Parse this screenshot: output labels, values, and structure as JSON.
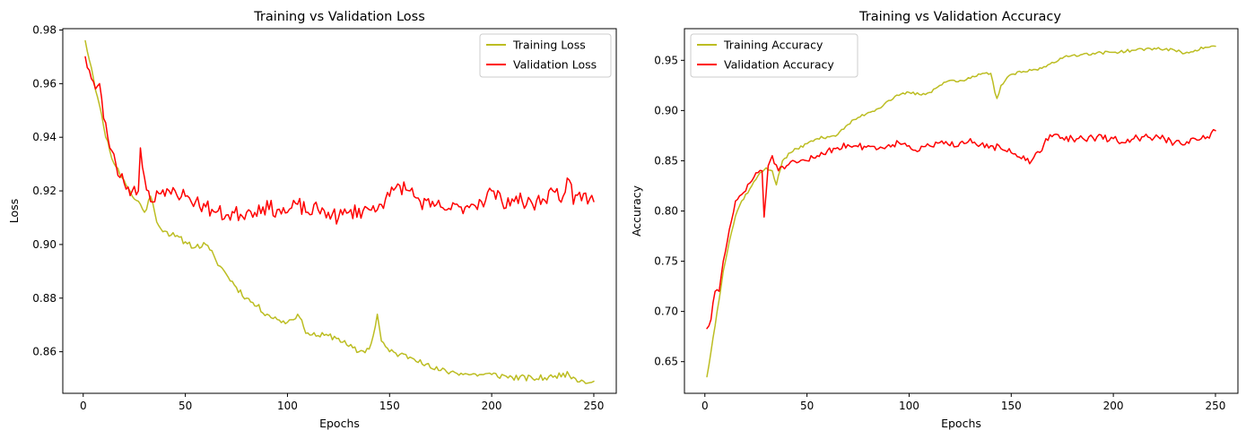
{
  "colors": {
    "training": "#bcbd22",
    "validation": "#ff0000"
  },
  "chart_data": [
    {
      "type": "line",
      "title": "Training vs Validation Loss",
      "xlabel": "Epochs",
      "ylabel": "Loss",
      "xlim": [
        -10,
        261
      ],
      "ylim": [
        0.8445,
        0.9805
      ],
      "xticks": [
        0,
        50,
        100,
        150,
        200,
        250
      ],
      "yticks": [
        0.86,
        0.88,
        0.9,
        0.92,
        0.94,
        0.96,
        0.98
      ],
      "xtick_labels": [
        "0",
        "50",
        "100",
        "150",
        "200",
        "250"
      ],
      "ytick_labels": [
        "0.86",
        "0.88",
        "0.90",
        "0.92",
        "0.94",
        "0.96",
        "0.98"
      ],
      "legend_position": "top-right",
      "grid": false,
      "series": [
        {
          "name": "Training Loss",
          "color": "#bcbd22",
          "keypoints": [
            [
              1,
              0.976
            ],
            [
              4,
              0.966
            ],
            [
              7,
              0.955
            ],
            [
              10,
              0.944
            ],
            [
              13,
              0.935
            ],
            [
              16,
              0.929
            ],
            [
              20,
              0.924
            ],
            [
              24,
              0.918
            ],
            [
              28,
              0.915
            ],
            [
              30,
              0.912
            ],
            [
              33,
              0.918
            ],
            [
              35,
              0.912
            ],
            [
              37,
              0.907
            ],
            [
              40,
              0.905
            ],
            [
              45,
              0.903
            ],
            [
              50,
              0.901
            ],
            [
              55,
              0.899
            ],
            [
              60,
              0.9
            ],
            [
              62,
              0.898
            ],
            [
              65,
              0.894
            ],
            [
              70,
              0.889
            ],
            [
              75,
              0.884
            ],
            [
              80,
              0.88
            ],
            [
              85,
              0.877
            ],
            [
              90,
              0.874
            ],
            [
              95,
              0.872
            ],
            [
              100,
              0.871
            ],
            [
              105,
              0.874
            ],
            [
              108,
              0.869
            ],
            [
              110,
              0.867
            ],
            [
              115,
              0.866
            ],
            [
              120,
              0.866
            ],
            [
              125,
              0.865
            ],
            [
              130,
              0.862
            ],
            [
              135,
              0.86
            ],
            [
              140,
              0.861
            ],
            [
              142,
              0.866
            ],
            [
              144,
              0.874
            ],
            [
              146,
              0.864
            ],
            [
              150,
              0.86
            ],
            [
              155,
              0.859
            ],
            [
              160,
              0.858
            ],
            [
              165,
              0.857
            ],
            [
              170,
              0.854
            ],
            [
              175,
              0.853
            ],
            [
              180,
              0.8525
            ],
            [
              185,
              0.852
            ],
            [
              190,
              0.8515
            ],
            [
              195,
              0.8515
            ],
            [
              200,
              0.8515
            ],
            [
              210,
              0.8505
            ],
            [
              220,
              0.85
            ],
            [
              230,
              0.8505
            ],
            [
              235,
              0.852
            ],
            [
              240,
              0.8505
            ],
            [
              245,
              0.849
            ],
            [
              250,
              0.849
            ]
          ],
          "noise": 0.0012,
          "seed": 11
        },
        {
          "name": "Validation Loss",
          "color": "#ff0000",
          "keypoints": [
            [
              1,
              0.97
            ],
            [
              3,
              0.965
            ],
            [
              6,
              0.958
            ],
            [
              8,
              0.96
            ],
            [
              10,
              0.947
            ],
            [
              12,
              0.94
            ],
            [
              14,
              0.935
            ],
            [
              16,
              0.93
            ],
            [
              18,
              0.925
            ],
            [
              20,
              0.923
            ],
            [
              24,
              0.92
            ],
            [
              27,
              0.92
            ],
            [
              28,
              0.936
            ],
            [
              30,
              0.925
            ],
            [
              33,
              0.916
            ],
            [
              36,
              0.92
            ],
            [
              40,
              0.918
            ],
            [
              45,
              0.92
            ],
            [
              50,
              0.918
            ],
            [
              55,
              0.916
            ],
            [
              60,
              0.914
            ],
            [
              65,
              0.912
            ],
            [
              70,
              0.911
            ],
            [
              80,
              0.912
            ],
            [
              88,
              0.914
            ],
            [
              95,
              0.913
            ],
            [
              100,
              0.912
            ],
            [
              105,
              0.915
            ],
            [
              110,
              0.912
            ],
            [
              115,
              0.913
            ],
            [
              120,
              0.912
            ],
            [
              125,
              0.91
            ],
            [
              130,
              0.912
            ],
            [
              140,
              0.913
            ],
            [
              145,
              0.915
            ],
            [
              150,
              0.918
            ],
            [
              155,
              0.922
            ],
            [
              160,
              0.92
            ],
            [
              165,
              0.916
            ],
            [
              170,
              0.914
            ],
            [
              175,
              0.914
            ],
            [
              180,
              0.913
            ],
            [
              185,
              0.914
            ],
            [
              190,
              0.915
            ],
            [
              195,
              0.916
            ],
            [
              200,
              0.92
            ],
            [
              205,
              0.916
            ],
            [
              210,
              0.917
            ],
            [
              215,
              0.916
            ],
            [
              220,
              0.915
            ],
            [
              225,
              0.917
            ],
            [
              230,
              0.92
            ],
            [
              235,
              0.918
            ],
            [
              238,
              0.924
            ],
            [
              240,
              0.915
            ],
            [
              245,
              0.919
            ],
            [
              248,
              0.917
            ],
            [
              250,
              0.916
            ]
          ],
          "noise": 0.003,
          "seed": 23
        }
      ]
    },
    {
      "type": "line",
      "title": "Training vs Validation Accuracy",
      "xlabel": "Epochs",
      "ylabel": "Accuracy",
      "xlim": [
        -10,
        261
      ],
      "ylim": [
        0.6185,
        0.9815
      ],
      "xticks": [
        0,
        50,
        100,
        150,
        200,
        250
      ],
      "yticks": [
        0.65,
        0.7,
        0.75,
        0.8,
        0.85,
        0.9,
        0.95
      ],
      "xtick_labels": [
        "0",
        "50",
        "100",
        "150",
        "200",
        "250"
      ],
      "ytick_labels": [
        "0.65",
        "0.70",
        "0.75",
        "0.80",
        "0.85",
        "0.90",
        "0.95"
      ],
      "legend_position": "top-left",
      "grid": false,
      "series": [
        {
          "name": "Training Accuracy",
          "color": "#bcbd22",
          "keypoints": [
            [
              1,
              0.635
            ],
            [
              3,
              0.66
            ],
            [
              6,
              0.7
            ],
            [
              9,
              0.74
            ],
            [
              12,
              0.77
            ],
            [
              15,
              0.795
            ],
            [
              18,
              0.81
            ],
            [
              22,
              0.822
            ],
            [
              26,
              0.835
            ],
            [
              30,
              0.843
            ],
            [
              33,
              0.84
            ],
            [
              35,
              0.826
            ],
            [
              38,
              0.85
            ],
            [
              42,
              0.858
            ],
            [
              45,
              0.862
            ],
            [
              50,
              0.867
            ],
            [
              55,
              0.872
            ],
            [
              60,
              0.874
            ],
            [
              65,
              0.876
            ],
            [
              70,
              0.886
            ],
            [
              75,
              0.893
            ],
            [
              80,
              0.898
            ],
            [
              85,
              0.902
            ],
            [
              90,
              0.91
            ],
            [
              95,
              0.915
            ],
            [
              100,
              0.918
            ],
            [
              105,
              0.916
            ],
            [
              110,
              0.918
            ],
            [
              115,
              0.925
            ],
            [
              120,
              0.93
            ],
            [
              125,
              0.93
            ],
            [
              130,
              0.932
            ],
            [
              135,
              0.936
            ],
            [
              140,
              0.937
            ],
            [
              142,
              0.918
            ],
            [
              143,
              0.912
            ],
            [
              145,
              0.925
            ],
            [
              150,
              0.936
            ],
            [
              155,
              0.938
            ],
            [
              160,
              0.94
            ],
            [
              165,
              0.942
            ],
            [
              170,
              0.948
            ],
            [
              175,
              0.952
            ],
            [
              180,
              0.955
            ],
            [
              185,
              0.956
            ],
            [
              190,
              0.957
            ],
            [
              200,
              0.958
            ],
            [
              210,
              0.96
            ],
            [
              220,
              0.962
            ],
            [
              230,
              0.96
            ],
            [
              235,
              0.957
            ],
            [
              240,
              0.96
            ],
            [
              245,
              0.963
            ],
            [
              250,
              0.964
            ]
          ],
          "noise": 0.0015,
          "seed": 37
        },
        {
          "name": "Validation Accuracy",
          "color": "#ff0000",
          "keypoints": [
            [
              1,
              0.683
            ],
            [
              3,
              0.692
            ],
            [
              5,
              0.72
            ],
            [
              7,
              0.72
            ],
            [
              9,
              0.75
            ],
            [
              11,
              0.77
            ],
            [
              13,
              0.79
            ],
            [
              15,
              0.81
            ],
            [
              17,
              0.815
            ],
            [
              20,
              0.82
            ],
            [
              23,
              0.83
            ],
            [
              25,
              0.838
            ],
            [
              28,
              0.84
            ],
            [
              29,
              0.794
            ],
            [
              31,
              0.845
            ],
            [
              33,
              0.855
            ],
            [
              36,
              0.84
            ],
            [
              40,
              0.845
            ],
            [
              45,
              0.848
            ],
            [
              50,
              0.85
            ],
            [
              55,
              0.855
            ],
            [
              60,
              0.86
            ],
            [
              65,
              0.863
            ],
            [
              70,
              0.866
            ],
            [
              75,
              0.864
            ],
            [
              80,
              0.865
            ],
            [
              85,
              0.862
            ],
            [
              90,
              0.866
            ],
            [
              95,
              0.868
            ],
            [
              100,
              0.865
            ],
            [
              105,
              0.86
            ],
            [
              110,
              0.865
            ],
            [
              115,
              0.868
            ],
            [
              120,
              0.865
            ],
            [
              125,
              0.868
            ],
            [
              130,
              0.872
            ],
            [
              135,
              0.866
            ],
            [
              140,
              0.865
            ],
            [
              145,
              0.862
            ],
            [
              150,
              0.858
            ],
            [
              155,
              0.852
            ],
            [
              160,
              0.85
            ],
            [
              165,
              0.86
            ],
            [
              167,
              0.872
            ],
            [
              170,
              0.874
            ],
            [
              175,
              0.873
            ],
            [
              180,
              0.872
            ],
            [
              190,
              0.873
            ],
            [
              200,
              0.872
            ],
            [
              205,
              0.868
            ],
            [
              210,
              0.872
            ],
            [
              215,
              0.874
            ],
            [
              220,
              0.873
            ],
            [
              225,
              0.872
            ],
            [
              230,
              0.868
            ],
            [
              235,
              0.866
            ],
            [
              240,
              0.872
            ],
            [
              245,
              0.872
            ],
            [
              248,
              0.878
            ],
            [
              250,
              0.88
            ]
          ],
          "noise": 0.0035,
          "seed": 51
        }
      ]
    }
  ]
}
